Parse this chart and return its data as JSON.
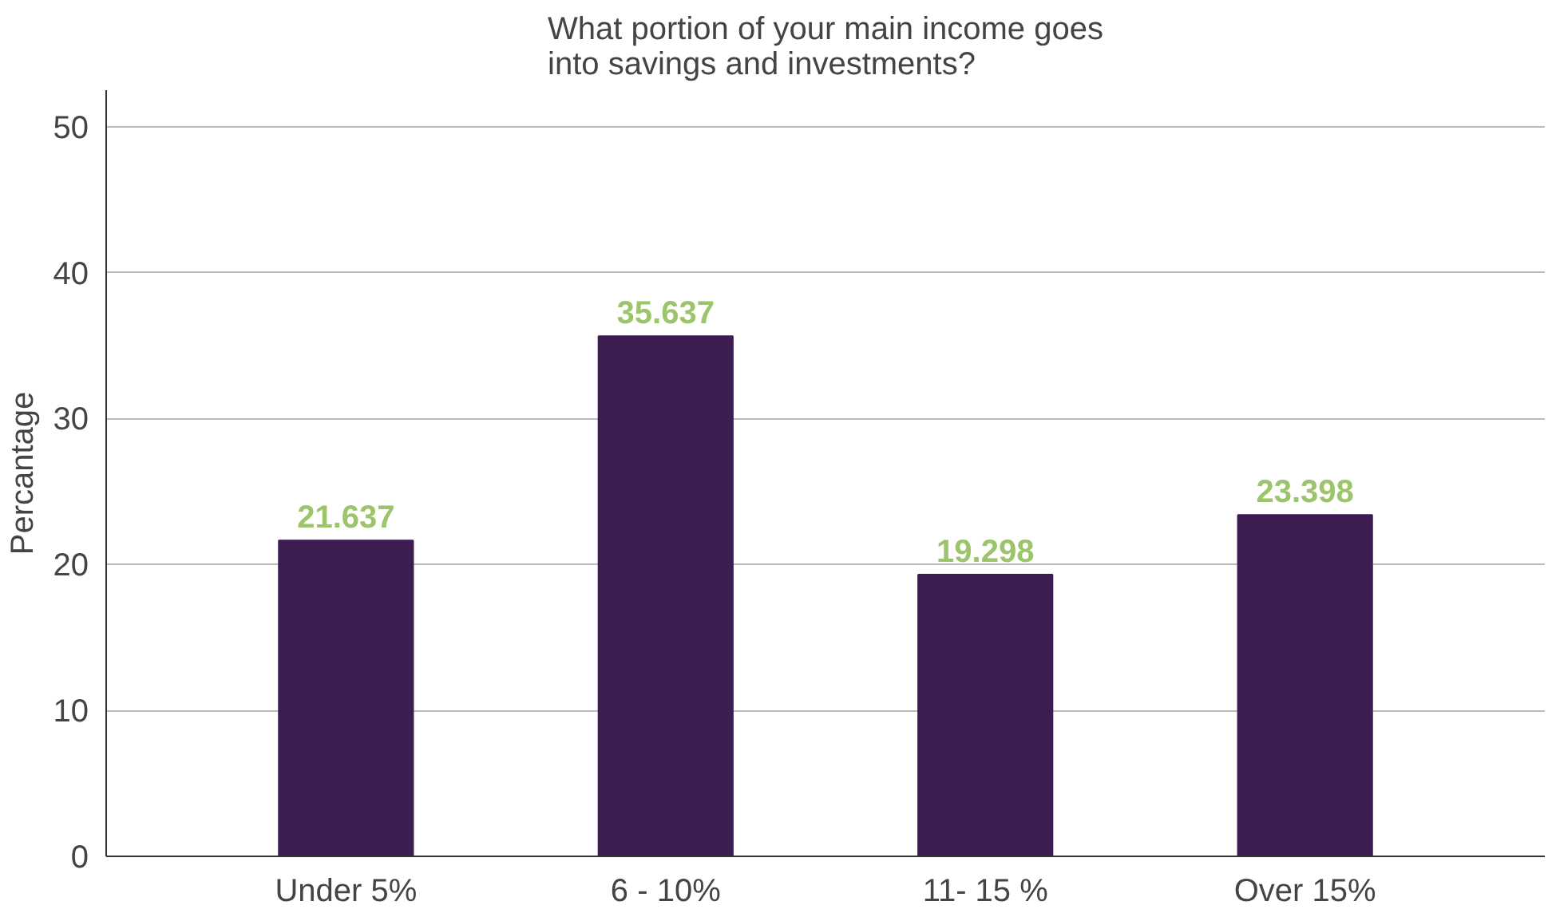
{
  "chart_data": {
    "type": "bar",
    "title": "What portion of your main income goes\ninto savings and investments?",
    "ylabel": "Percantage",
    "categories": [
      "Under 5%",
      "6 - 10%",
      "11- 15 %",
      "Over 15%"
    ],
    "values": [
      21.637,
      35.637,
      19.298,
      23.398
    ],
    "color": "#3b1d52",
    "ylim": [
      0,
      52.5
    ],
    "yticks": [
      0,
      10,
      20,
      30,
      40,
      50
    ],
    "grid": "y",
    "data_labels": true
  }
}
